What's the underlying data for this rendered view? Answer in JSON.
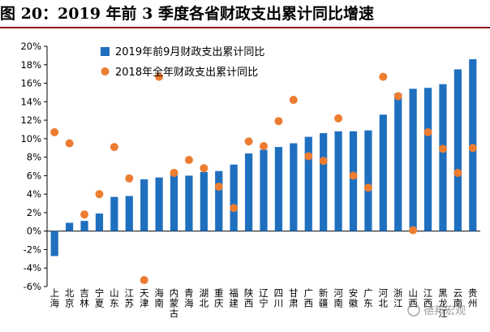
{
  "title": "图 20：2019 年前 3 季度各省财政支出累计同比增速",
  "chart_data": {
    "type": "bar",
    "categories": [
      "上海",
      "北京",
      "吉林",
      "宁夏",
      "山东",
      "江苏",
      "天津",
      "海南",
      "内蒙古",
      "青海",
      "湖北",
      "重庆",
      "福建",
      "陕西",
      "辽宁",
      "四川",
      "甘肃",
      "广西",
      "新疆",
      "河南",
      "安徽",
      "广东",
      "河北",
      "浙江",
      "山西",
      "江西",
      "黑龙江",
      "云南",
      "贵州"
    ],
    "series": [
      {
        "name": "2019年前9月财政支出累计同比",
        "type": "bar",
        "color": "#1f6fbf",
        "values": [
          -2.7,
          0.9,
          1.1,
          1.9,
          3.7,
          3.8,
          5.6,
          5.8,
          6.1,
          6.0,
          6.4,
          6.5,
          7.2,
          8.4,
          8.8,
          9.1,
          9.5,
          10.2,
          10.6,
          10.8,
          10.8,
          10.9,
          12.6,
          14.9,
          15.4,
          15.5,
          15.9,
          17.5,
          18.6
        ]
      },
      {
        "name": "2018年全年财政支出累计同比",
        "type": "scatter",
        "color": "#ed7d31",
        "values": [
          10.7,
          9.5,
          1.8,
          4.0,
          9.1,
          5.7,
          -5.3,
          16.7,
          6.3,
          7.7,
          6.8,
          4.8,
          2.5,
          9.7,
          9.2,
          11.9,
          14.2,
          8.1,
          7.6,
          12.2,
          6.0,
          4.7,
          16.7,
          14.6,
          0.1,
          10.7,
          8.9,
          6.3,
          9.0
        ]
      }
    ],
    "ylim": [
      -6,
      20
    ],
    "yticks": [
      -6,
      -4,
      -2,
      0,
      2,
      4,
      6,
      8,
      10,
      12,
      14,
      16,
      18,
      20
    ],
    "ytick_labels": [
      "-6%",
      "-4%",
      "-2%",
      "0%",
      "2%",
      "4%",
      "6%",
      "8%",
      "10%",
      "12%",
      "14%",
      "16%",
      "18%",
      "20%"
    ],
    "legend_position": "top-left",
    "grid": false
  },
  "watermark": "德邦宏观"
}
